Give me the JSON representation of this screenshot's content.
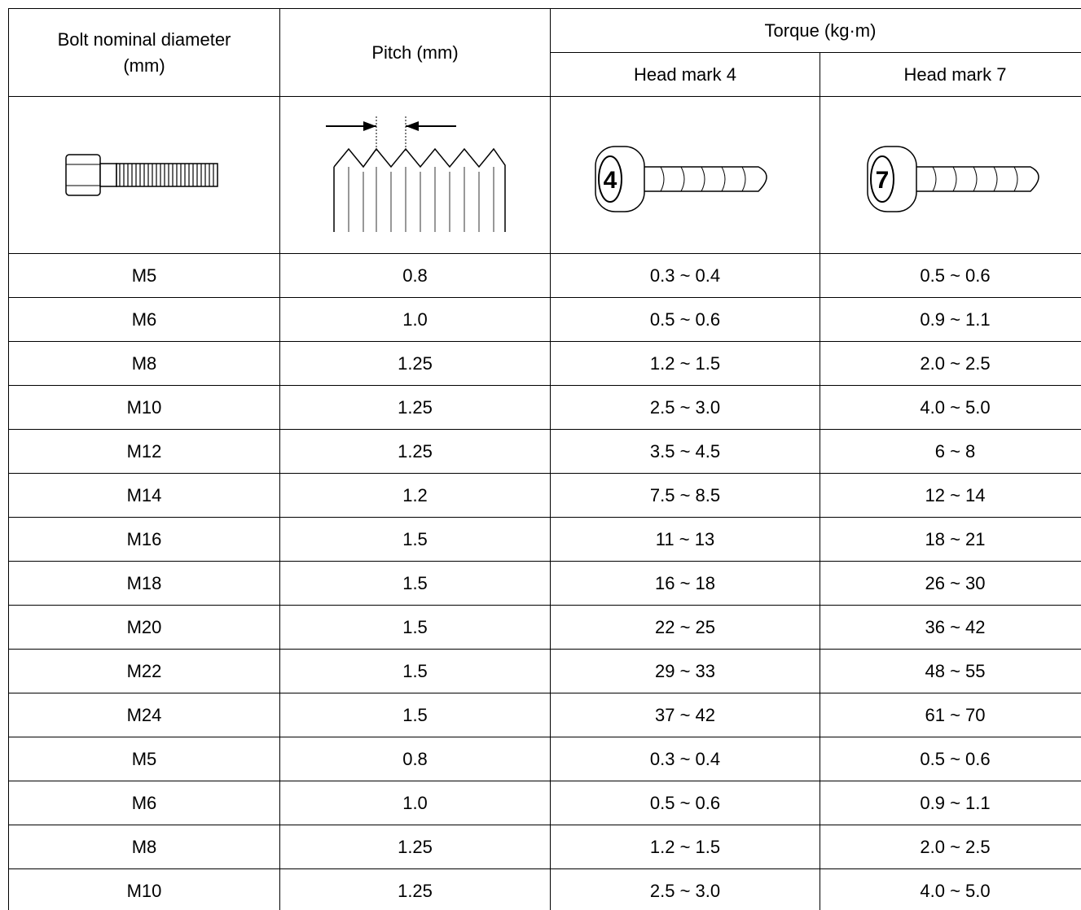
{
  "table": {
    "header": {
      "diameter": "Bolt nominal diameter (mm)",
      "pitch": "Pitch (mm)",
      "torque": "Torque (kg·m)",
      "head_mark_4": "Head mark 4",
      "head_mark_7": "Head mark 7"
    },
    "illustrations": {
      "head_mark_4_symbol": "4",
      "head_mark_7_symbol": "7"
    },
    "rows": [
      [
        "M5",
        "0.8",
        "0.3 ~ 0.4",
        "0.5 ~ 0.6"
      ],
      [
        "M6",
        "1.0",
        "0.5 ~ 0.6",
        "0.9 ~ 1.1"
      ],
      [
        "M8",
        "1.25",
        "1.2 ~ 1.5",
        "2.0 ~ 2.5"
      ],
      [
        "M10",
        "1.25",
        "2.5 ~ 3.0",
        "4.0 ~ 5.0"
      ],
      [
        "M12",
        "1.25",
        "3.5 ~ 4.5",
        "6 ~ 8"
      ],
      [
        "M14",
        "1.2",
        "7.5 ~ 8.5",
        "12 ~ 14"
      ],
      [
        "M16",
        "1.5",
        "11 ~ 13",
        "18 ~ 21"
      ],
      [
        "M18",
        "1.5",
        "16 ~ 18",
        "26 ~ 30"
      ],
      [
        "M20",
        "1.5",
        "22 ~ 25",
        "36 ~ 42"
      ],
      [
        "M22",
        "1.5",
        "29 ~ 33",
        "48 ~ 55"
      ],
      [
        "M24",
        "1.5",
        "37 ~ 42",
        "61 ~ 70"
      ],
      [
        "M5",
        "0.8",
        "0.3 ~ 0.4",
        "0.5 ~ 0.6"
      ],
      [
        "M6",
        "1.0",
        "0.5 ~ 0.6",
        "0.9 ~ 1.1"
      ],
      [
        "M8",
        "1.25",
        "1.2 ~ 1.5",
        "2.0 ~ 2.5"
      ],
      [
        "M10",
        "1.25",
        "2.5 ~ 3.0",
        "4.0 ~ 5.0"
      ]
    ]
  }
}
